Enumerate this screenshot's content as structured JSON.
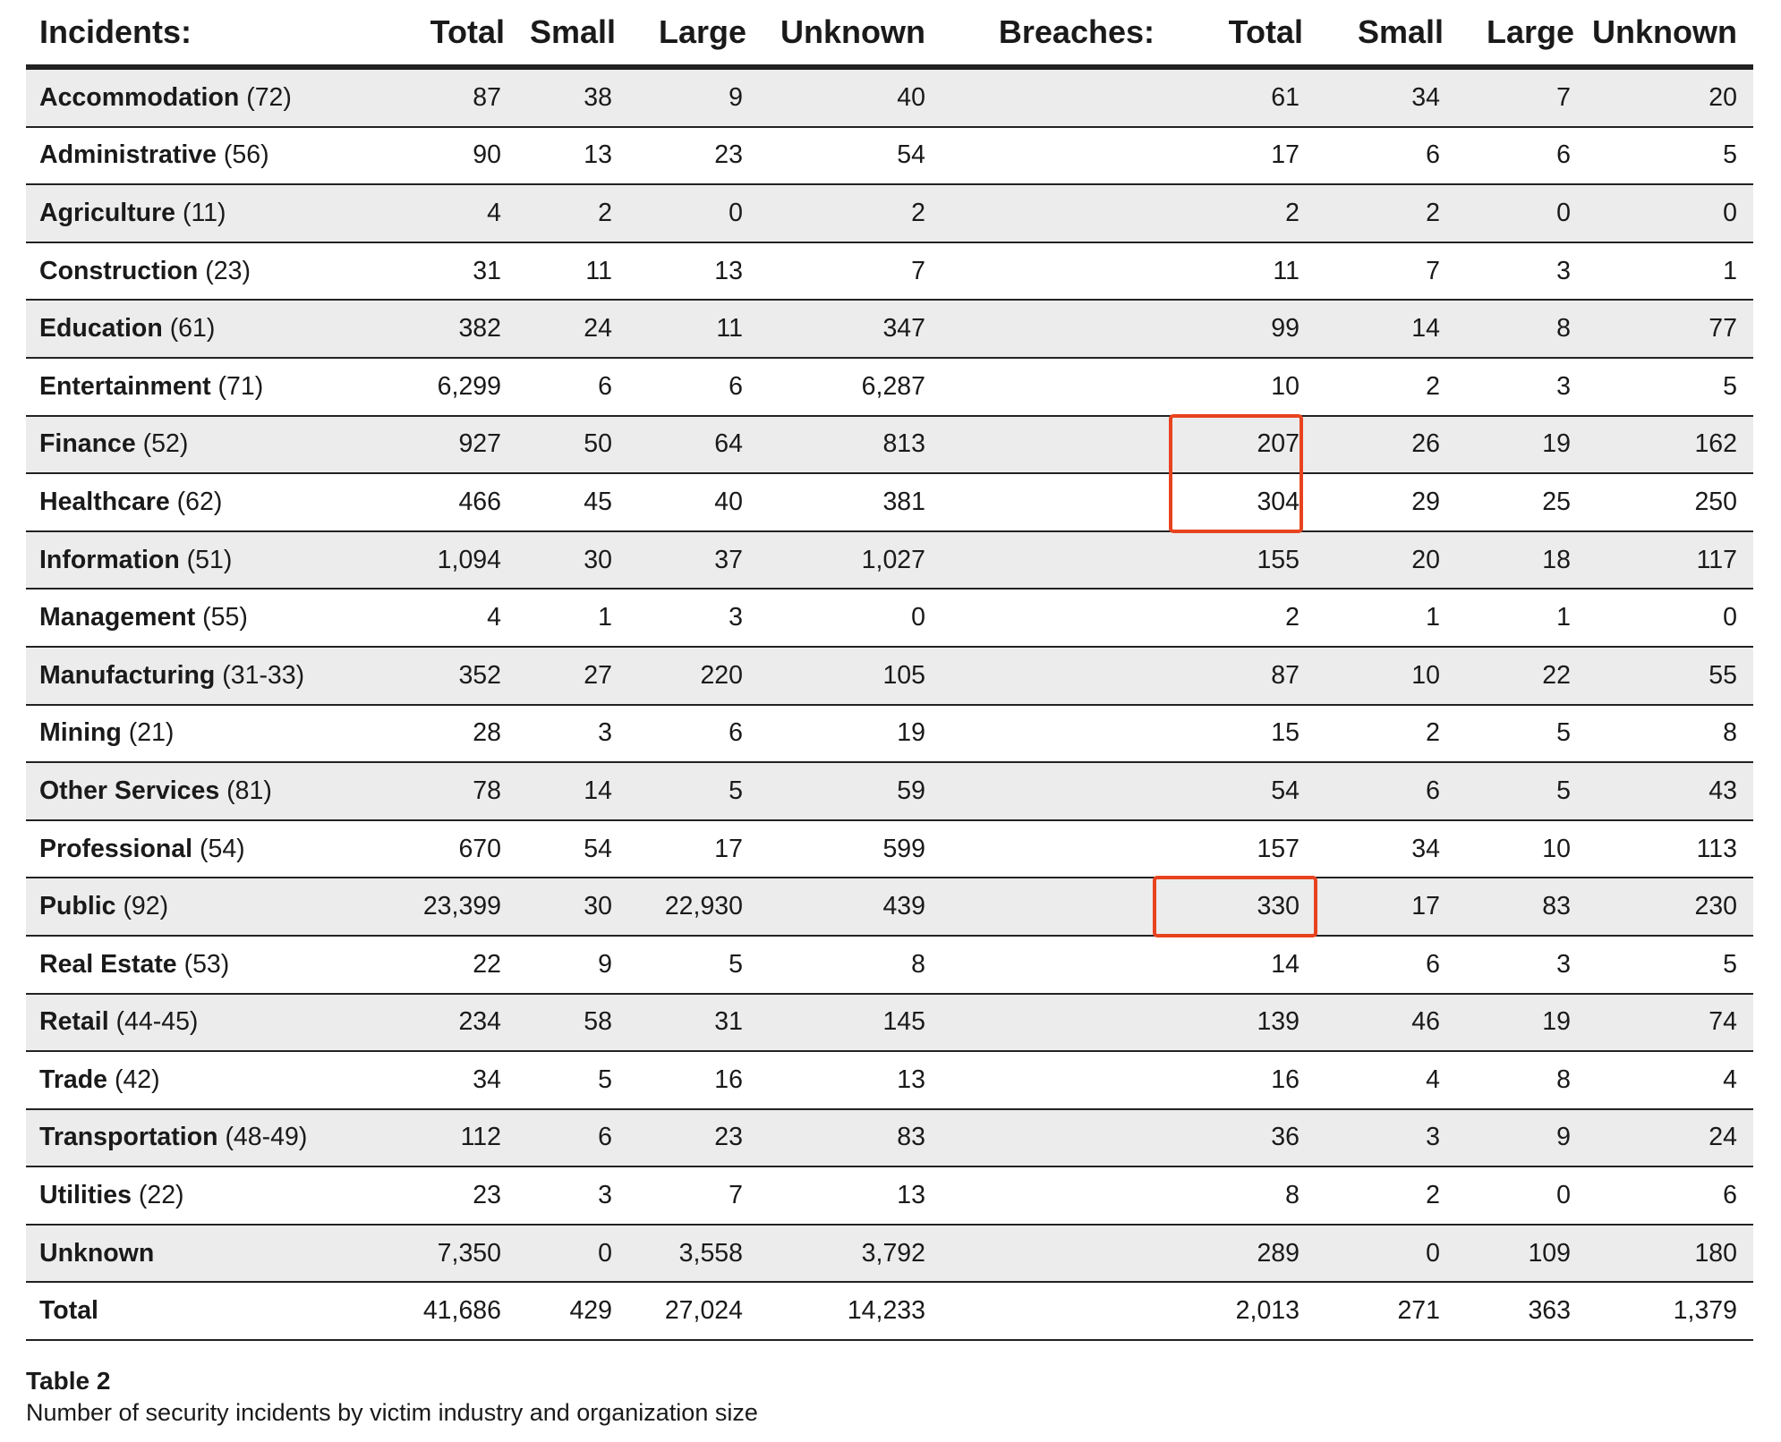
{
  "headers": {
    "incidents_label": "Incidents:",
    "breaches_label": "Breaches:",
    "incidents_cols": [
      "Total",
      "Small",
      "Large",
      "Unknown"
    ],
    "breaches_cols": [
      "Total",
      "Small",
      "Large",
      "Unknown"
    ]
  },
  "rows": [
    {
      "name": "Accommodation",
      "code": "(72)",
      "inc": [
        "87",
        "38",
        "9",
        "40"
      ],
      "br": [
        "61",
        "34",
        "7",
        "20"
      ]
    },
    {
      "name": "Administrative",
      "code": "(56)",
      "inc": [
        "90",
        "13",
        "23",
        "54"
      ],
      "br": [
        "17",
        "6",
        "6",
        "5"
      ]
    },
    {
      "name": "Agriculture",
      "code": "(11)",
      "inc": [
        "4",
        "2",
        "0",
        "2"
      ],
      "br": [
        "2",
        "2",
        "0",
        "0"
      ]
    },
    {
      "name": "Construction",
      "code": "(23)",
      "inc": [
        "31",
        "11",
        "13",
        "7"
      ],
      "br": [
        "11",
        "7",
        "3",
        "1"
      ]
    },
    {
      "name": "Education",
      "code": "(61)",
      "inc": [
        "382",
        "24",
        "11",
        "347"
      ],
      "br": [
        "99",
        "14",
        "8",
        "77"
      ]
    },
    {
      "name": "Entertainment",
      "code": "(71)",
      "inc": [
        "6,299",
        "6",
        "6",
        "6,287"
      ],
      "br": [
        "10",
        "2",
        "3",
        "5"
      ]
    },
    {
      "name": "Finance",
      "code": "(52)",
      "inc": [
        "927",
        "50",
        "64",
        "813"
      ],
      "br": [
        "207",
        "26",
        "19",
        "162"
      ]
    },
    {
      "name": "Healthcare",
      "code": "(62)",
      "inc": [
        "466",
        "45",
        "40",
        "381"
      ],
      "br": [
        "304",
        "29",
        "25",
        "250"
      ]
    },
    {
      "name": "Information",
      "code": "(51)",
      "inc": [
        "1,094",
        "30",
        "37",
        "1,027"
      ],
      "br": [
        "155",
        "20",
        "18",
        "117"
      ]
    },
    {
      "name": "Management",
      "code": "(55)",
      "inc": [
        "4",
        "1",
        "3",
        "0"
      ],
      "br": [
        "2",
        "1",
        "1",
        "0"
      ]
    },
    {
      "name": "Manufacturing",
      "code": "(31-33)",
      "inc": [
        "352",
        "27",
        "220",
        "105"
      ],
      "br": [
        "87",
        "10",
        "22",
        "55"
      ]
    },
    {
      "name": "Mining",
      "code": "(21)",
      "inc": [
        "28",
        "3",
        "6",
        "19"
      ],
      "br": [
        "15",
        "2",
        "5",
        "8"
      ]
    },
    {
      "name": "Other Services",
      "code": "(81)",
      "inc": [
        "78",
        "14",
        "5",
        "59"
      ],
      "br": [
        "54",
        "6",
        "5",
        "43"
      ]
    },
    {
      "name": "Professional",
      "code": "(54)",
      "inc": [
        "670",
        "54",
        "17",
        "599"
      ],
      "br": [
        "157",
        "34",
        "10",
        "113"
      ]
    },
    {
      "name": "Public",
      "code": "(92)",
      "inc": [
        "23,399",
        "30",
        "22,930",
        "439"
      ],
      "br": [
        "330",
        "17",
        "83",
        "230"
      ]
    },
    {
      "name": "Real Estate",
      "code": "(53)",
      "inc": [
        "22",
        "9",
        "5",
        "8"
      ],
      "br": [
        "14",
        "6",
        "3",
        "5"
      ]
    },
    {
      "name": "Retail",
      "code": "(44-45)",
      "inc": [
        "234",
        "58",
        "31",
        "145"
      ],
      "br": [
        "139",
        "46",
        "19",
        "74"
      ]
    },
    {
      "name": "Trade",
      "code": "(42)",
      "inc": [
        "34",
        "5",
        "16",
        "13"
      ],
      "br": [
        "16",
        "4",
        "8",
        "4"
      ]
    },
    {
      "name": "Transportation",
      "code": "(48-49)",
      "inc": [
        "112",
        "6",
        "23",
        "83"
      ],
      "br": [
        "36",
        "3",
        "9",
        "24"
      ]
    },
    {
      "name": "Utilities",
      "code": "(22)",
      "inc": [
        "23",
        "3",
        "7",
        "13"
      ],
      "br": [
        "8",
        "2",
        "0",
        "6"
      ]
    },
    {
      "name": "Unknown",
      "code": "",
      "inc": [
        "7,350",
        "0",
        "3,558",
        "3,792"
      ],
      "br": [
        "289",
        "0",
        "109",
        "180"
      ]
    },
    {
      "name": "Total",
      "code": "",
      "inc": [
        "41,686",
        "429",
        "27,024",
        "14,233"
      ],
      "br": [
        "2,013",
        "271",
        "363",
        "1,379"
      ]
    }
  ],
  "highlights": [
    {
      "rows": [
        "Finance",
        "Healthcare"
      ],
      "column": "breaches_total",
      "color": "#e8431f"
    },
    {
      "rows": [
        "Public"
      ],
      "column": "breaches_total",
      "color": "#e8431f"
    }
  ],
  "caption": {
    "title": "Table 2",
    "subtitle": "Number of security incidents by victim industry and organization size"
  }
}
